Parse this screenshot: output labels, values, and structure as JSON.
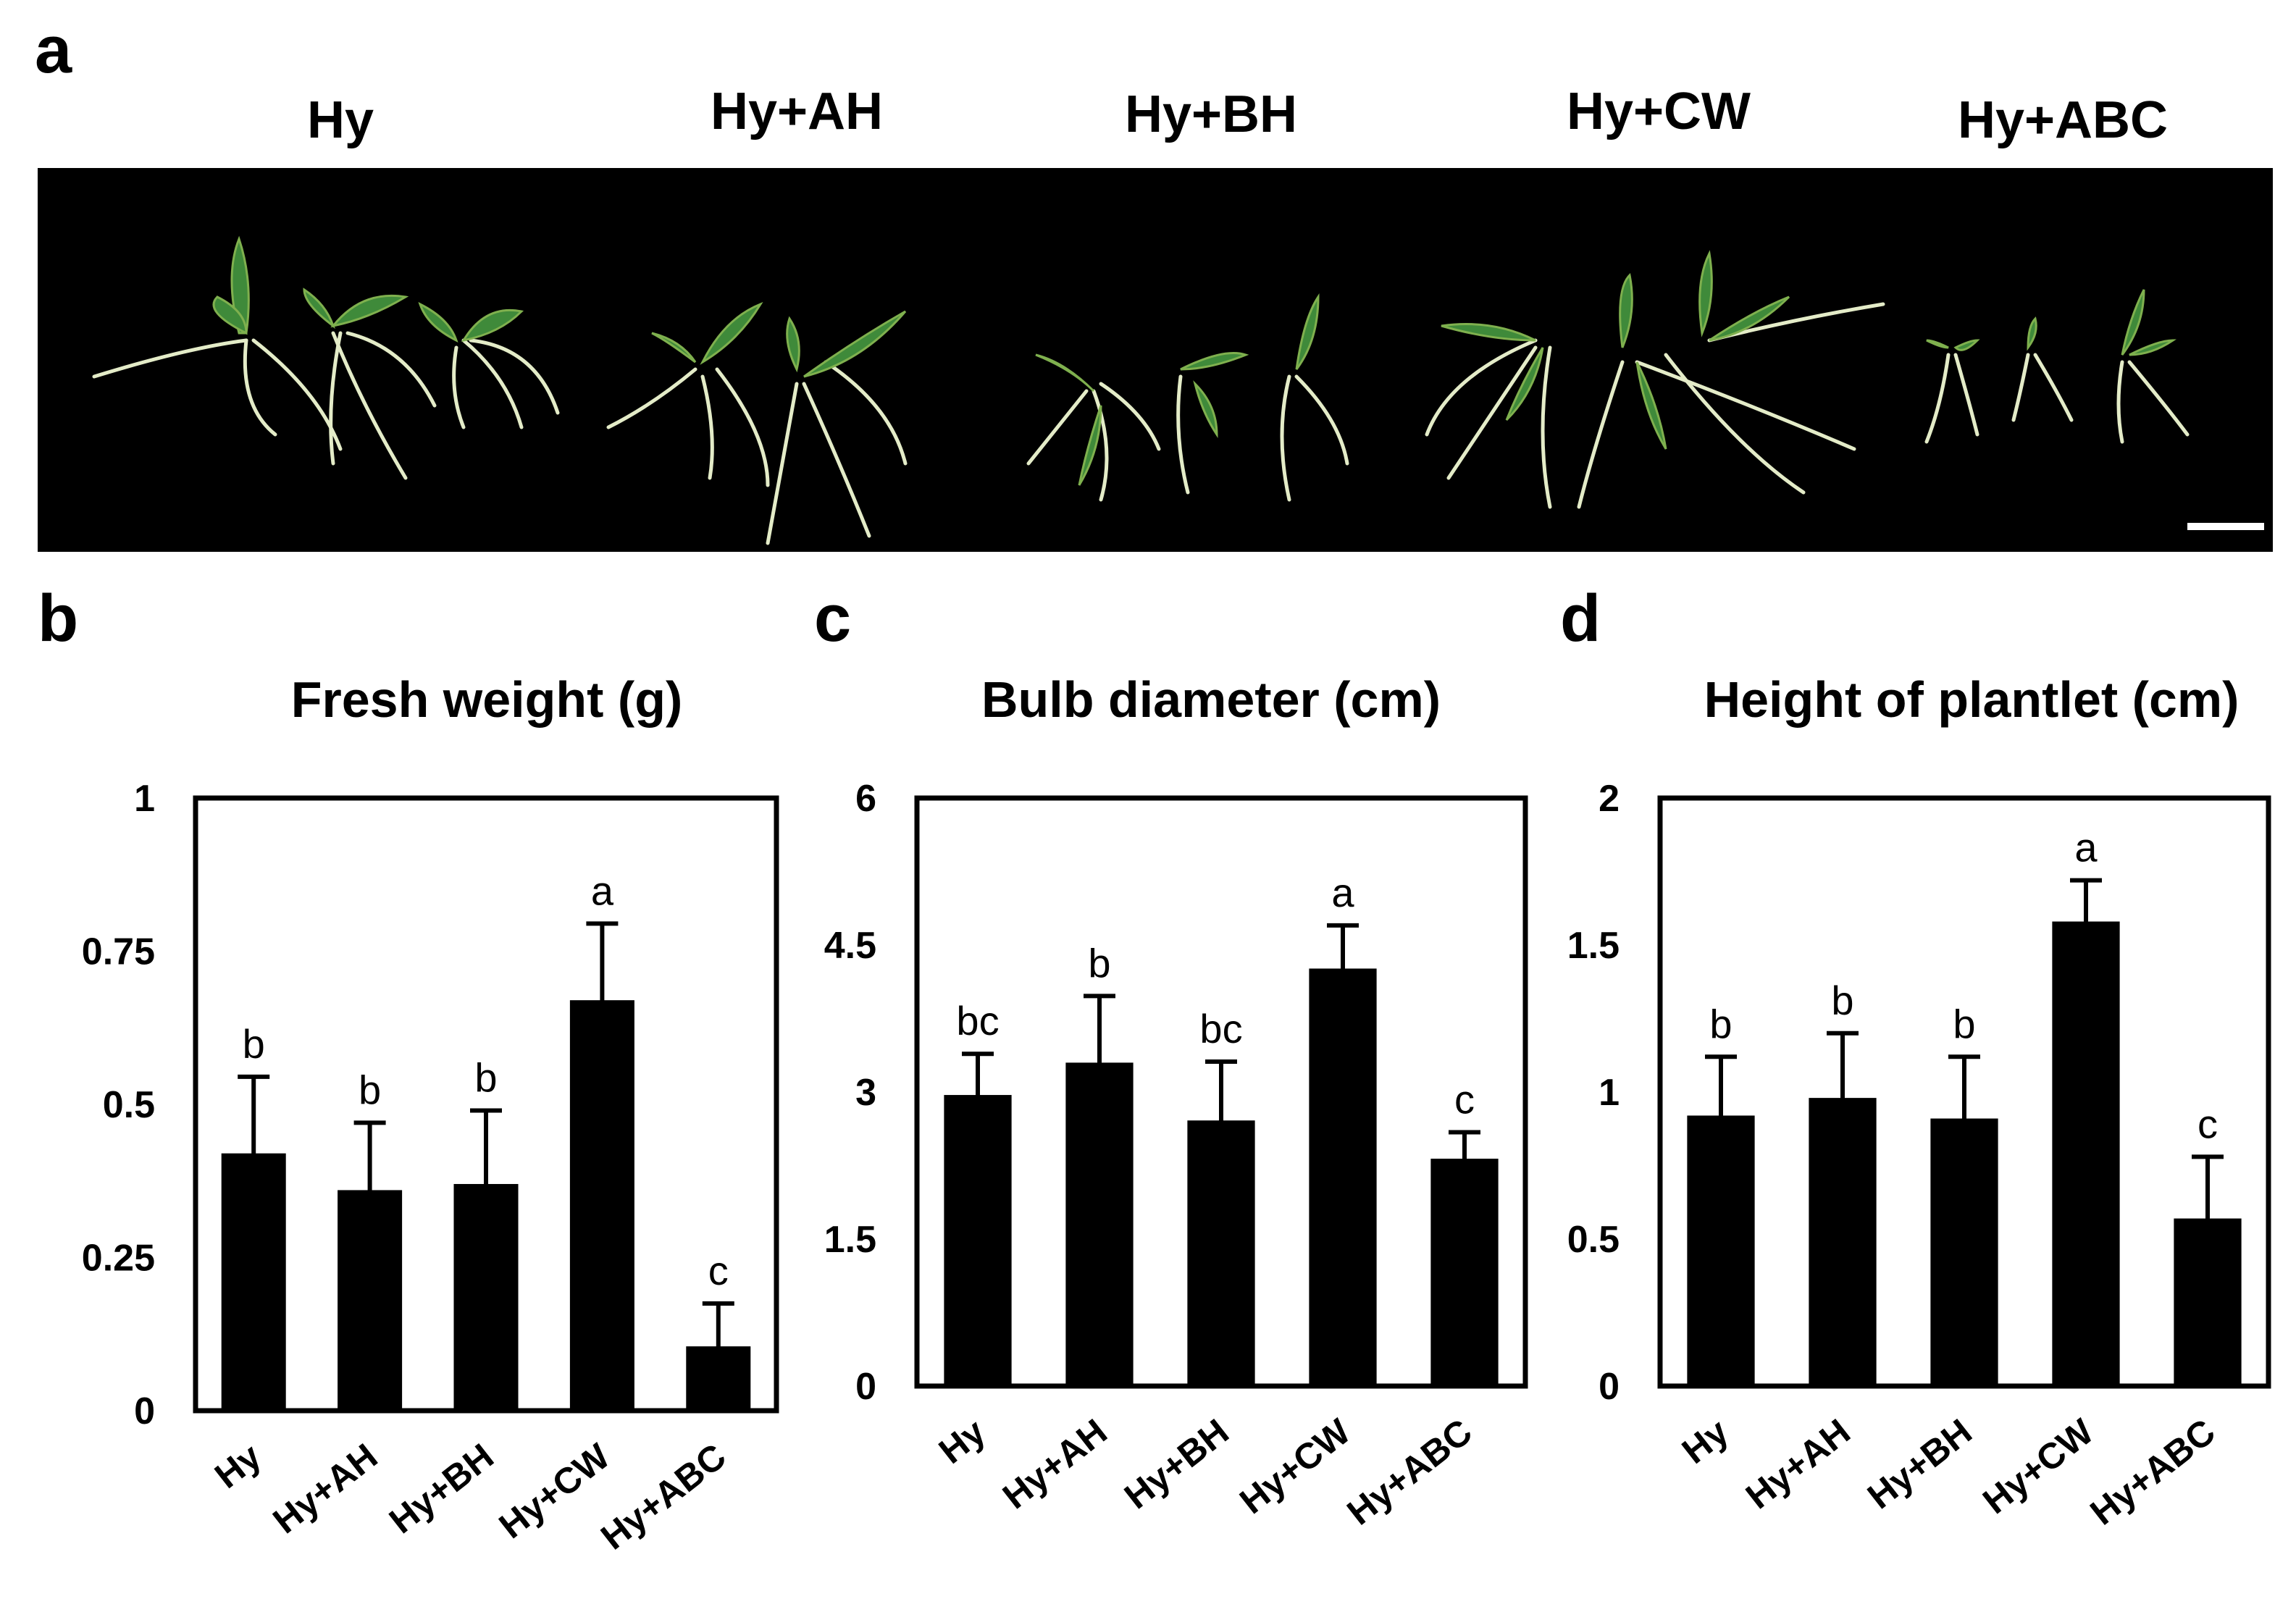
{
  "panel_a": {
    "letter": "a",
    "groups": [
      "Hy",
      "Hy+AH",
      "Hy+BH",
      "Hy+CW",
      "Hy+ABC"
    ]
  },
  "chart_data": [
    {
      "panel": "b",
      "type": "bar",
      "title": "Fresh weight (g)",
      "xlabel": "",
      "ylabel": "",
      "categories": [
        "Hy",
        "Hy+AH",
        "Hy+BH",
        "Hy+CW",
        "Hy+ABC"
      ],
      "values": [
        0.42,
        0.36,
        0.37,
        0.67,
        0.105
      ],
      "errors": [
        0.125,
        0.11,
        0.12,
        0.125,
        0.07
      ],
      "significance": [
        "b",
        "b",
        "b",
        "a",
        "c"
      ],
      "ylim": [
        0,
        1
      ],
      "yticks": [
        0,
        0.25,
        0.5,
        0.75,
        1
      ],
      "ytick_labels": [
        "0",
        "0.25",
        "0.5",
        "0.75",
        "1"
      ],
      "bar_color": "#000000",
      "grid": false,
      "legend": "none"
    },
    {
      "panel": "c",
      "type": "bar",
      "title": "Bulb diameter (cm)",
      "xlabel": "",
      "ylabel": "",
      "categories": [
        "Hy",
        "Hy+AH",
        "Hy+BH",
        "Hy+CW",
        "Hy+ABC"
      ],
      "values": [
        2.97,
        3.3,
        2.71,
        4.26,
        2.32
      ],
      "errors": [
        0.42,
        0.68,
        0.6,
        0.44,
        0.27
      ],
      "significance": [
        "bc",
        "b",
        "bc",
        "a",
        "c"
      ],
      "ylim": [
        0,
        6
      ],
      "yticks": [
        0,
        1.5,
        3,
        4.5,
        6
      ],
      "ytick_labels": [
        "0",
        "1.5",
        "3",
        "4.5",
        "6"
      ],
      "bar_color": "#000000",
      "grid": false,
      "legend": "none"
    },
    {
      "panel": "d",
      "type": "bar",
      "title": "Height of plantlet (cm)",
      "xlabel": "",
      "ylabel": "",
      "categories": [
        "Hy",
        "Hy+AH",
        "Hy+BH",
        "Hy+CW",
        "Hy+ABC"
      ],
      "values": [
        0.92,
        0.98,
        0.91,
        1.58,
        0.57
      ],
      "errors": [
        0.2,
        0.22,
        0.21,
        0.14,
        0.21
      ],
      "significance": [
        "b",
        "b",
        "b",
        "a",
        "c"
      ],
      "ylim": [
        0,
        2
      ],
      "yticks": [
        0,
        0.5,
        1,
        1.5,
        2
      ],
      "ytick_labels": [
        "0",
        "0.5",
        "1",
        "1.5",
        "2"
      ],
      "bar_color": "#000000",
      "grid": false,
      "legend": "none"
    }
  ]
}
